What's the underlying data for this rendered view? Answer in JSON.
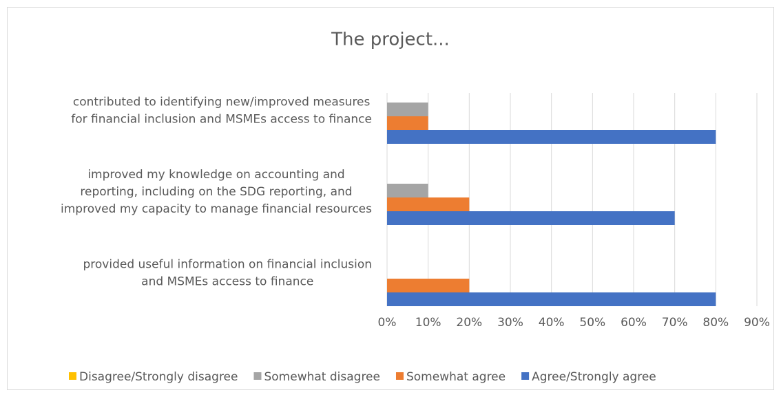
{
  "chart_data": {
    "type": "bar",
    "orientation": "horizontal",
    "title": "The project...",
    "categories": [
      "contributed to identifying new/improved measures\nfor financial inclusion and MSMEs access to finance",
      "improved my knowledge on accounting and\nreporting, including on the SDG reporting, and\nimproved my capacity to manage financial resources",
      "provided useful information on financial inclusion\nand MSMEs access to finance"
    ],
    "series": [
      {
        "name": "Disagree/Strongly disagree",
        "color": "#ffc000",
        "values": [
          0,
          0,
          0
        ]
      },
      {
        "name": "Somewhat disagree",
        "color": "#a5a5a5",
        "values": [
          10,
          10,
          0
        ]
      },
      {
        "name": "Somewhat agree",
        "color": "#ed7d31",
        "values": [
          10,
          20,
          20
        ]
      },
      {
        "name": "Agree/Strongly agree",
        "color": "#4472c4",
        "values": [
          80,
          70,
          80
        ]
      }
    ],
    "xlim": [
      0,
      90
    ],
    "xticks": [
      {
        "value": 0,
        "label": "0%"
      },
      {
        "value": 10,
        "label": "10%"
      },
      {
        "value": 20,
        "label": "20%"
      },
      {
        "value": 30,
        "label": "30%"
      },
      {
        "value": 40,
        "label": "40%"
      },
      {
        "value": 50,
        "label": "50%"
      },
      {
        "value": 60,
        "label": "60%"
      },
      {
        "value": 70,
        "label": "70%"
      },
      {
        "value": 80,
        "label": "80%"
      },
      {
        "value": 90,
        "label": "90%"
      }
    ],
    "grid": true,
    "legend": "bottom"
  }
}
